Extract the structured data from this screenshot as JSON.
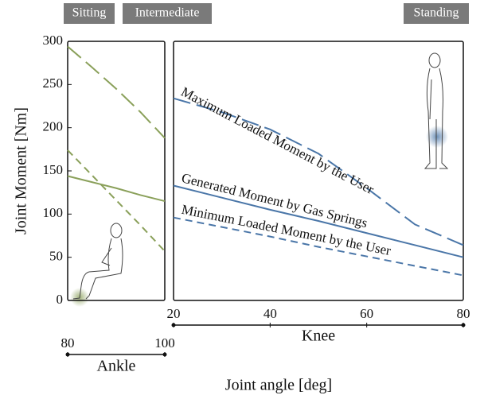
{
  "figure": {
    "phases": [
      "Sitting",
      "Intermediate",
      "Standing"
    ],
    "xlabel": "Joint angle [deg]"
  },
  "chart_data": [
    {
      "type": "line",
      "ylabel": "Joint Moment [Nm]",
      "xlabel": "Ankle",
      "x": [
        80,
        85,
        90,
        95,
        100
      ],
      "xlim": [
        80,
        100
      ],
      "xticks": [
        80,
        100
      ],
      "ylim": [
        0,
        300
      ],
      "yticks": [
        0,
        50,
        100,
        150,
        200,
        250,
        300
      ],
      "series": [
        {
          "color": "#8aa05a",
          "dash": "long",
          "values": [
            294,
            270,
            245,
            218,
            188
          ]
        },
        {
          "color": "#8aa05a",
          "dash": "short",
          "values": [
            174,
            145,
            116,
            87,
            57
          ]
        },
        {
          "color": "#8aa05a",
          "dash": "solid",
          "values": [
            144,
            137,
            130,
            122,
            115
          ]
        }
      ]
    },
    {
      "type": "line",
      "xlabel": "Knee",
      "x": [
        20,
        30,
        40,
        50,
        60,
        70,
        80
      ],
      "xlim": [
        20,
        80
      ],
      "xticks": [
        20,
        40,
        60,
        80
      ],
      "ylim": [
        0,
        300
      ],
      "series": [
        {
          "name": "Maximum Loaded Moment by the User",
          "color": "#4a76a8",
          "dash": "long",
          "values": [
            234,
            218,
            198,
            170,
            130,
            88,
            64
          ]
        },
        {
          "name": "Generated Moment by Gas Springs",
          "color": "#4a76a8",
          "dash": "solid",
          "values": [
            133,
            119,
            105,
            92,
            78,
            64,
            50
          ]
        },
        {
          "name": "Minimum Loaded Moment by the User",
          "color": "#4a76a8",
          "dash": "short",
          "values": [
            96,
            85,
            74,
            62,
            51,
            40,
            29
          ]
        }
      ]
    }
  ]
}
